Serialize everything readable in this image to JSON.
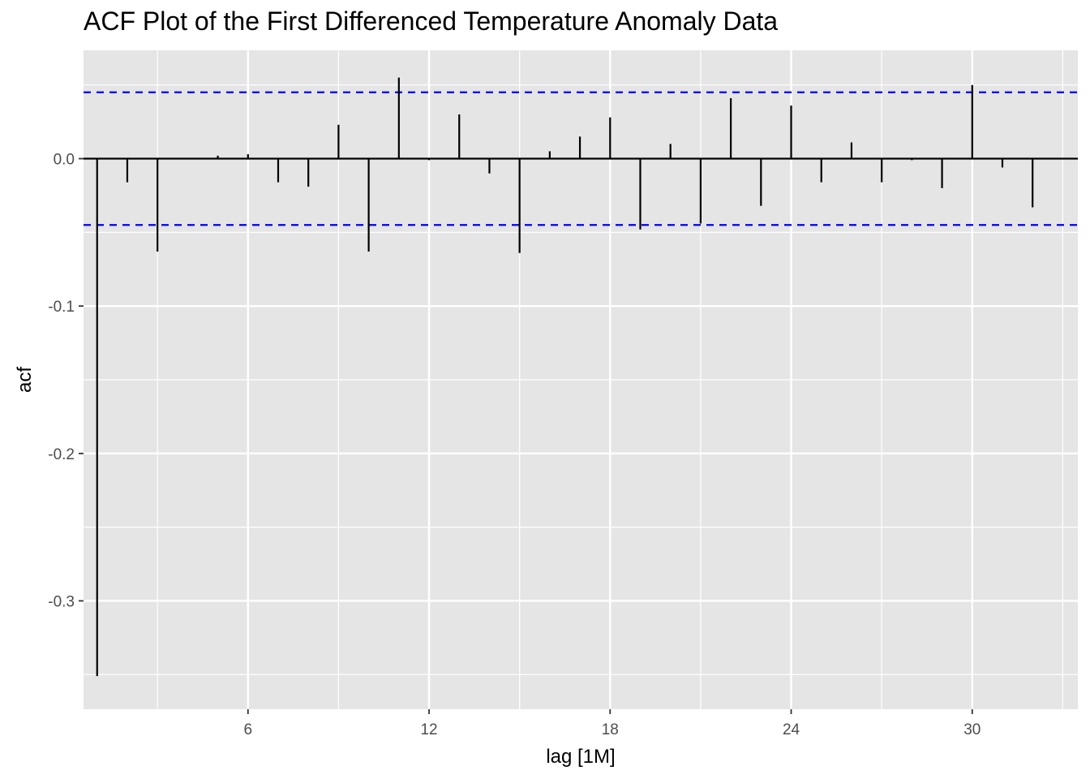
{
  "chart_data": {
    "type": "bar",
    "title": "ACF Plot of the First Differenced Temperature Anomaly Data",
    "xlabel": "lag [1M]",
    "ylabel": "acf",
    "x": [
      1,
      2,
      3,
      4,
      5,
      6,
      7,
      8,
      9,
      10,
      11,
      12,
      13,
      14,
      15,
      16,
      17,
      18,
      19,
      20,
      21,
      22,
      23,
      24,
      25,
      26,
      27,
      28,
      29,
      30,
      31,
      32
    ],
    "values": [
      -0.351,
      -0.016,
      -0.063,
      0.0,
      0.002,
      0.003,
      -0.016,
      -0.019,
      0.023,
      -0.063,
      0.055,
      -0.001,
      0.03,
      -0.01,
      -0.064,
      0.005,
      0.015,
      0.028,
      -0.048,
      0.01,
      -0.044,
      0.041,
      -0.032,
      0.036,
      -0.016,
      0.011,
      -0.016,
      -0.001,
      -0.02,
      0.05,
      -0.006,
      -0.033
    ],
    "confidence_bound": 0.045,
    "xlim": [
      0.55,
      33.5
    ],
    "ylim": [
      -0.3735,
      0.0735
    ],
    "x_ticks": [
      6,
      12,
      18,
      24,
      30
    ],
    "x_tick_labels": [
      "6",
      "12",
      "18",
      "24",
      "30"
    ],
    "y_ticks": [
      -0.3,
      -0.2,
      -0.1,
      0.0
    ],
    "y_tick_labels": [
      "-0.3",
      "-0.2",
      "-0.1",
      "0.0"
    ],
    "grid": true,
    "colors": {
      "panel_background": "#e5e5e5",
      "grid": "#ffffff",
      "bars": "#000000",
      "confidence_lines": "#0000ff"
    }
  }
}
